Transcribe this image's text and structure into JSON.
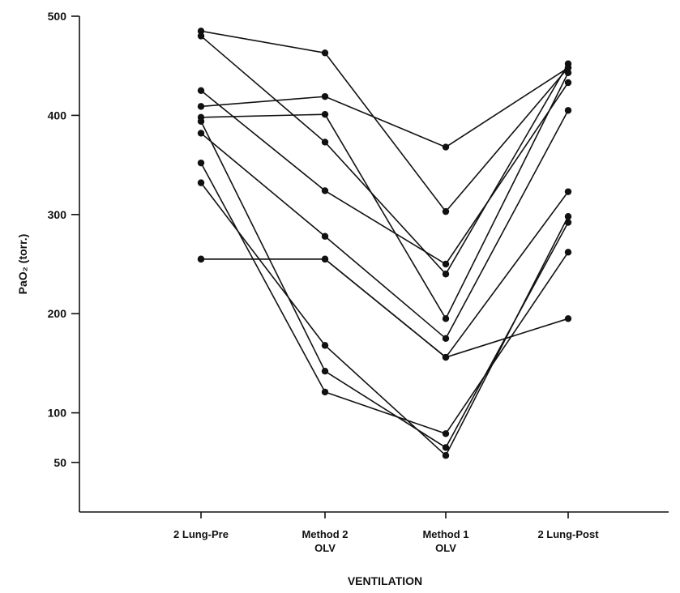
{
  "chart_data": {
    "type": "line",
    "title": "",
    "xlabel": "VENTILATION",
    "ylabel": "PaO₂ (torr.)",
    "ylim": [
      0,
      500
    ],
    "yticks": [
      50,
      100,
      200,
      300,
      400,
      500
    ],
    "categories": [
      {
        "line1": "2 Lung-Pre",
        "line2": ""
      },
      {
        "line1": "Method 2",
        "line2": "OLV"
      },
      {
        "line1": "Method 1",
        "line2": "OLV"
      },
      {
        "line1": "2 Lung-Post",
        "line2": ""
      }
    ],
    "grid": false,
    "legend": "none",
    "colors": {
      "line": "#111111",
      "marker": "#111111",
      "axis": "#111111"
    },
    "series": [
      {
        "values": [
          485,
          463,
          303,
          448
        ]
      },
      {
        "values": [
          480,
          373,
          240,
          452
        ]
      },
      {
        "values": [
          409,
          419,
          368,
          448
        ]
      },
      {
        "values": [
          398,
          401,
          195,
          443
        ]
      },
      {
        "values": [
          425,
          324,
          250,
          433
        ]
      },
      {
        "values": [
          382,
          278,
          175,
          405
        ]
      },
      {
        "values": [
          255,
          255,
          156,
          195
        ]
      },
      {
        "values": [
          332,
          168,
          57,
          298
        ]
      },
      {
        "values": [
          394,
          142,
          65,
          292
        ]
      },
      {
        "values": [
          352,
          121,
          79,
          262
        ]
      },
      {
        "values": [
          255,
          255,
          156,
          323
        ]
      }
    ]
  }
}
